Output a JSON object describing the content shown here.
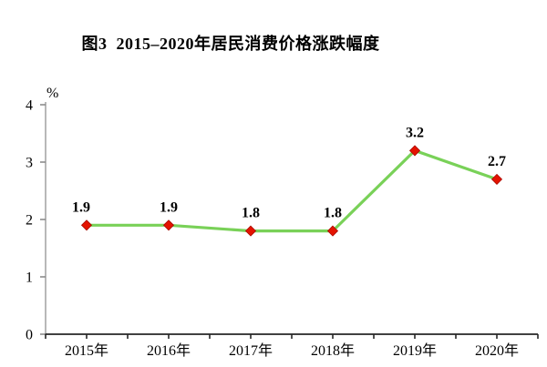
{
  "title": "图3  2015–2020年居民消费价格涨跌幅度",
  "colors": {
    "line": "#79d158",
    "marker_fill": "#e41300",
    "marker_stroke": "#a80b00",
    "y_axis": "#a6a6a6",
    "y_tick": "#8c8c8c",
    "x_axis": "#262626",
    "x_tick": "#262626",
    "text": "#000000"
  },
  "chart_data": {
    "type": "line",
    "title": "图3  2015–2020年居民消费价格涨跌幅度",
    "categories": [
      "2015年",
      "2016年",
      "2017年",
      "2018年",
      "2019年",
      "2020年"
    ],
    "values": [
      1.9,
      1.9,
      1.8,
      1.8,
      3.2,
      2.7
    ],
    "data_labels": [
      "1.9",
      "1.9",
      "1.8",
      "1.8",
      "3.2",
      "2.7"
    ],
    "xlabel": "",
    "ylabel": "%",
    "ylim": [
      0,
      4
    ],
    "yticks": [
      0,
      1,
      2,
      3,
      4
    ],
    "grid": false,
    "legend": "none",
    "marker": "diamond",
    "x_minor_ticks_between_categories": true
  }
}
